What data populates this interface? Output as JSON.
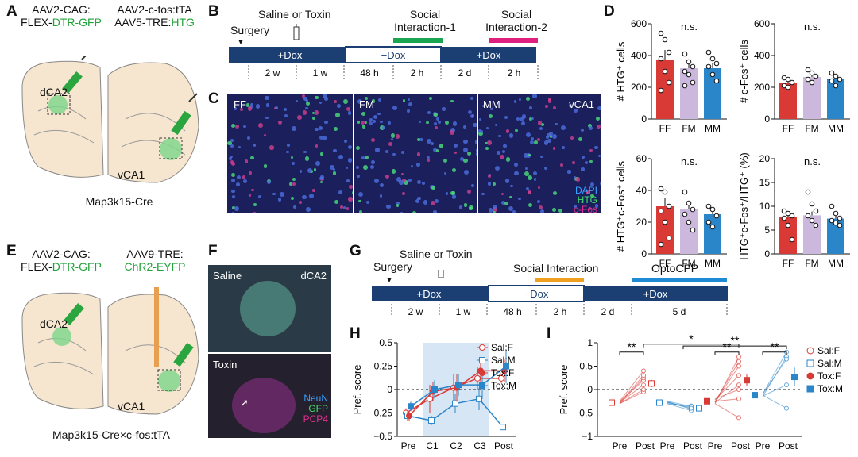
{
  "panels": {
    "A": "A",
    "B": "B",
    "C": "C",
    "D": "D",
    "E": "E",
    "F": "F",
    "G": "G",
    "H": "H",
    "I": "I"
  },
  "A": {
    "vec1_line1": "AAV2-CAG:",
    "vec1_line2_pre": "FLEX-",
    "vec1_line2_green": "DTR-GFP",
    "vec2_line1": "AAV2-c-fos:tTA",
    "vec2_line2_pre": "AAV5-TRE:",
    "vec2_line2_green": "HTG",
    "region1": "dCA2",
    "region2": "vCA1",
    "mouse": "Map3k15-Cre"
  },
  "B": {
    "surgery": "Surgery",
    "saline_toxin": "Saline or Toxin",
    "social1": "Social\nInteraction-1",
    "social2": "Social\nInteraction-2",
    "bar": [
      "+Dox",
      "−Dox",
      "+Dox"
    ],
    "durations": [
      "2 w",
      "1 w",
      "48 h",
      "2 h",
      "2 d",
      "2 h"
    ],
    "colors": {
      "social1": "#1aa550",
      "social2": "#e0207f",
      "bar": "#1b3f73"
    }
  },
  "C": {
    "labels": [
      "FF",
      "FM",
      "MM"
    ],
    "region": "vCA1",
    "legend": [
      "DAPI",
      "HTG",
      "c-Fos"
    ]
  },
  "D": {
    "chart_data": [
      {
        "type": "bar",
        "title": "n.s.",
        "ylabel": "# HTG⁺ cells",
        "categories": [
          "FF",
          "FM",
          "MM"
        ],
        "values": [
          375,
          320,
          320
        ],
        "errors": [
          60,
          40,
          35
        ],
        "ylim": [
          0,
          600
        ],
        "yticks": [
          "0",
          "200",
          "400",
          "600"
        ],
        "points": [
          [
            540,
            500,
            420,
            380,
            300,
            230,
            180
          ],
          [
            410,
            360,
            330,
            300,
            280,
            230,
            210
          ],
          [
            420,
            380,
            350,
            330,
            280,
            240
          ]
        ]
      },
      {
        "type": "bar",
        "title": "n.s.",
        "ylabel": "# c-Fos⁺ cells",
        "categories": [
          "FF",
          "FM",
          "MM"
        ],
        "values": [
          225,
          265,
          250
        ],
        "errors": [
          25,
          30,
          25
        ],
        "ylim": [
          0,
          600
        ],
        "yticks": [
          "0",
          "200",
          "400",
          "600"
        ],
        "points": [
          [
            260,
            250,
            230,
            210,
            200
          ],
          [
            310,
            290,
            270,
            250,
            230
          ],
          [
            290,
            270,
            250,
            240,
            210
          ]
        ]
      },
      {
        "type": "bar",
        "title": "n.s.",
        "ylabel": "# HTG⁺c-Fos⁺ cells",
        "categories": [
          "FF",
          "FM",
          "MM"
        ],
        "values": [
          30,
          28,
          25
        ],
        "errors": [
          5,
          5,
          4
        ],
        "ylim": [
          0,
          60
        ],
        "yticks": [
          "0",
          "20",
          "40",
          "60"
        ],
        "points": [
          [
            41,
            39,
            30,
            27,
            20,
            10,
            6
          ],
          [
            39,
            32,
            28,
            25,
            20,
            15
          ],
          [
            30,
            28,
            24,
            20,
            17
          ]
        ]
      },
      {
        "type": "bar",
        "title": "n.s.",
        "ylabel": "HTG⁺c-Fos⁺/HTG⁺ (%)",
        "categories": [
          "FF",
          "FM",
          "MM"
        ],
        "values": [
          7.8,
          8.1,
          7.4
        ],
        "errors": [
          0.8,
          0.8,
          0.6
        ],
        "ylim": [
          0,
          20
        ],
        "yticks": [
          "0",
          "5",
          "10",
          "15",
          "20"
        ],
        "points": [
          [
            9,
            8.5,
            8,
            7.5,
            6,
            3
          ],
          [
            13,
            10.5,
            9,
            8,
            7,
            6
          ],
          [
            10,
            8.5,
            7.5,
            7,
            6.5,
            6
          ]
        ]
      }
    ],
    "bar_colors": [
      "#d93a35",
      "#cbb8dc",
      "#2b85c9"
    ]
  },
  "E": {
    "vec1_line1": "AAV2-CAG:",
    "vec1_line2_pre": "FLEX-",
    "vec1_line2_green": "DTR-GFP",
    "vec2_line1": "AAV9-TRE:",
    "vec2_line2_green": "ChR2-EYFP",
    "region1": "dCA2",
    "region2": "vCA1",
    "mouse": "Map3k15-Cre×c-fos:tTA"
  },
  "F": {
    "top_label": "Saline",
    "region": "dCA2",
    "bottom_label": "Toxin",
    "legend": [
      "NeuN",
      "GFP",
      "PCP4"
    ]
  },
  "G": {
    "surgery": "Surgery",
    "saline_toxin": "Saline or Toxin",
    "social": "Social Interaction",
    "opto": "OptoCPP",
    "bar": [
      "+Dox",
      "−Dox",
      "+Dox"
    ],
    "durations": [
      "2 w",
      "1 w",
      "48 h",
      "2 h",
      "2 d",
      "5 d"
    ],
    "colors": {
      "social": "#f0a020",
      "opto": "#1f8ad6"
    }
  },
  "H": {
    "chart_data": {
      "type": "line",
      "ylabel": "Pref. score",
      "x": [
        "Pre",
        "C1",
        "C2",
        "C3",
        "Post"
      ],
      "ylim": [
        -0.5,
        0.5
      ],
      "yticks": [
        "−0.5",
        "−0.25",
        "0",
        "0.25",
        "0.5"
      ],
      "series": [
        {
          "name": "Sal:F",
          "color": "#d93a35",
          "filled": false,
          "marker": "circle",
          "values": [
            -0.25,
            -0.1,
            0.02,
            0.12,
            0.12
          ],
          "errors": [
            0.05,
            0.15,
            0.15,
            0.12,
            0.05
          ]
        },
        {
          "name": "Sal:M",
          "color": "#2b85c9",
          "filled": false,
          "marker": "square",
          "values": [
            -0.28,
            -0.33,
            -0.15,
            -0.1,
            -0.4
          ],
          "errors": [
            0.05,
            0.05,
            0.1,
            0.12,
            0.03
          ]
        },
        {
          "name": "Tox:F",
          "color": "#d93a35",
          "filled": true,
          "marker": "circle",
          "values": [
            -0.28,
            -0.02,
            0.02,
            0.2,
            0.2
          ],
          "errors": [
            0.05,
            0.1,
            0.15,
            0.12,
            0.12
          ]
        },
        {
          "name": "Tox:M",
          "color": "#2b85c9",
          "filled": true,
          "marker": "square",
          "values": [
            -0.18,
            0.0,
            0.05,
            0.05,
            0.25
          ],
          "errors": [
            0.05,
            0.1,
            0.12,
            0.15,
            0.18
          ]
        }
      ]
    }
  },
  "I": {
    "chart_data": {
      "type": "scatter",
      "ylabel": "Pref. score",
      "ylim": [
        -1,
        1
      ],
      "yticks": [
        "−1",
        "−0.5",
        "0",
        "0.5",
        "1"
      ],
      "groups": [
        {
          "name": "Sal:F",
          "color": "#d93a35",
          "filled": false,
          "pre": -0.28,
          "post": 0.13,
          "post_err": 0.08,
          "pairs": [
            [
              -0.3,
              -0.05
            ],
            [
              -0.3,
              0.0
            ],
            [
              -0.28,
              0.1
            ],
            [
              -0.26,
              0.2
            ],
            [
              -0.3,
              0.25
            ],
            [
              -0.25,
              0.4
            ],
            [
              -0.28,
              0.3
            ]
          ]
        },
        {
          "name": "Sal:M",
          "color": "#2b85c9",
          "filled": false,
          "pre": -0.28,
          "post": -0.4,
          "post_err": 0.03,
          "pairs": [
            [
              -0.3,
              -0.35
            ],
            [
              -0.28,
              -0.38
            ],
            [
              -0.26,
              -0.42
            ],
            [
              -0.3,
              -0.45
            ],
            [
              -0.25,
              -0.36
            ],
            [
              -0.27,
              -0.4
            ]
          ]
        },
        {
          "name": "Tox:F",
          "color": "#d93a35",
          "filled": true,
          "pre": -0.25,
          "post": 0.2,
          "post_err": 0.12,
          "pairs": [
            [
              -0.3,
              -0.6
            ],
            [
              -0.25,
              -0.2
            ],
            [
              -0.28,
              0.1
            ],
            [
              -0.22,
              0.3
            ],
            [
              -0.27,
              0.5
            ],
            [
              -0.26,
              0.6
            ],
            [
              -0.3,
              0.7
            ],
            [
              -0.2,
              0.0
            ]
          ]
        },
        {
          "name": "Tox:M",
          "color": "#2b85c9",
          "filled": true,
          "pre": -0.12,
          "post": 0.27,
          "post_err": 0.2,
          "pairs": [
            [
              -0.15,
              0.7
            ],
            [
              -0.1,
              0.65
            ],
            [
              -0.12,
              -0.4
            ],
            [
              -0.14,
              0.1
            ],
            [
              -0.1,
              0.8
            ]
          ]
        }
      ],
      "x_labels": [
        "Pre",
        "Post",
        "Pre",
        "Post",
        "Pre",
        "Post",
        "Pre",
        "Post"
      ],
      "significance": [
        "**",
        "*",
        "**",
        "**",
        "**"
      ]
    }
  },
  "legend_labels": [
    "Sal:F",
    "Sal:M",
    "Tox:F",
    "Tox:M"
  ]
}
